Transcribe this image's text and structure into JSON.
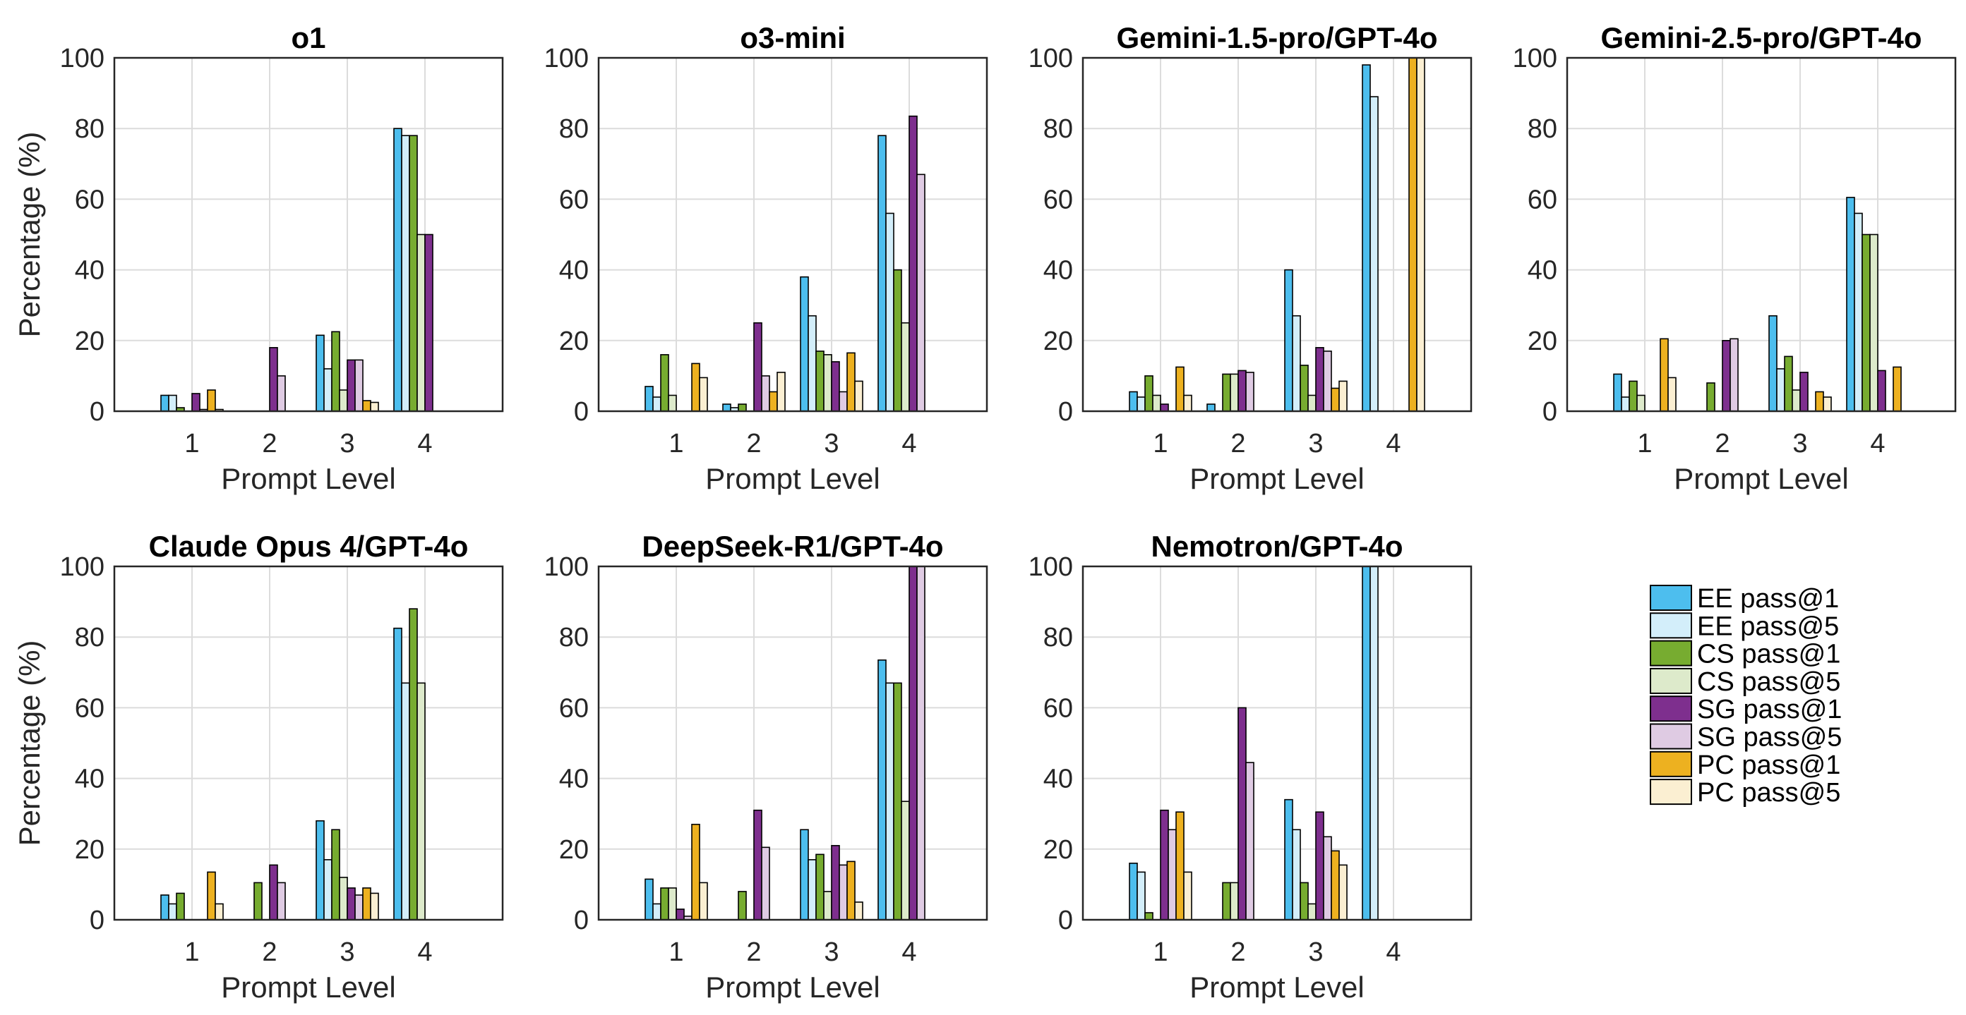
{
  "chart_data": {
    "type": "bar",
    "xlabel": "Prompt Level",
    "ylabel": "Percentage (%)",
    "categories": [
      "1",
      "2",
      "3",
      "4"
    ],
    "ylim": [
      0,
      100
    ],
    "yticks": [
      "0",
      "20",
      "40",
      "60",
      "80",
      "100"
    ],
    "grid": true,
    "legend_position": "bottom-right",
    "series": [
      {
        "name": "EE pass@1",
        "color": "#4DBEEE"
      },
      {
        "name": "EE pass@5",
        "color": "#D3EEFA"
      },
      {
        "name": "CS pass@1",
        "color": "#77AC30"
      },
      {
        "name": "CS pass@5",
        "color": "#DDEACB"
      },
      {
        "name": "SG pass@1",
        "color": "#7E2F8E"
      },
      {
        "name": "SG pass@5",
        "color": "#DFCBE3"
      },
      {
        "name": "PC pass@1",
        "color": "#EDB120"
      },
      {
        "name": "PC pass@5",
        "color": "#FBEFD2"
      }
    ],
    "panels": [
      {
        "title": "o1",
        "values": [
          [
            4.5,
            4.5,
            1,
            0,
            5,
            0.5,
            6,
            0.5
          ],
          [
            0,
            0,
            0,
            0,
            18,
            10,
            0,
            0
          ],
          [
            21.5,
            12,
            22.5,
            6,
            14.5,
            14.5,
            3,
            2.5
          ],
          [
            80,
            78,
            78,
            50,
            50,
            0,
            0,
            0
          ]
        ]
      },
      {
        "title": "o3-mini",
        "values": [
          [
            7,
            4,
            16,
            4.5,
            0,
            0,
            13.5,
            9.5
          ],
          [
            2,
            1,
            2,
            0,
            25,
            10,
            5.5,
            11
          ],
          [
            38,
            27,
            17,
            16,
            14,
            5.5,
            16.5,
            8.5
          ],
          [
            78,
            56,
            40,
            25,
            83.5,
            67,
            0,
            0
          ]
        ]
      },
      {
        "title": "Gemini-1.5-pro/GPT-4o",
        "values": [
          [
            5.5,
            4,
            10,
            4.5,
            2,
            0,
            12.5,
            4.5
          ],
          [
            2,
            0,
            10.5,
            10.5,
            11.5,
            11,
            0,
            0
          ],
          [
            40,
            27,
            13,
            4.5,
            18,
            17,
            6.5,
            8.5
          ],
          [
            98,
            89,
            0,
            0,
            0,
            0,
            100,
            100
          ]
        ]
      },
      {
        "title": "Gemini-2.5-pro/GPT-4o",
        "values": [
          [
            10.5,
            4,
            8.5,
            4.5,
            0,
            0,
            20.5,
            9.5
          ],
          [
            0,
            0,
            8,
            0,
            20,
            20.5,
            0,
            0
          ],
          [
            27,
            12,
            15.5,
            6,
            11,
            0,
            5.5,
            4
          ],
          [
            60.5,
            56,
            50,
            50,
            11.5,
            0,
            12.5,
            0
          ]
        ]
      },
      {
        "title": "Claude Opus 4/GPT-4o",
        "values": [
          [
            7,
            4.5,
            7.5,
            0,
            0,
            0,
            13.5,
            4.5
          ],
          [
            0,
            0,
            10.5,
            0,
            15.5,
            10.5,
            0,
            0
          ],
          [
            28,
            17,
            25.5,
            12,
            9,
            7,
            9,
            7.5
          ],
          [
            82.5,
            67,
            88,
            67,
            0,
            0,
            0,
            0
          ]
        ]
      },
      {
        "title": "DeepSeek-R1/GPT-4o",
        "values": [
          [
            11.5,
            4.5,
            9,
            9,
            3,
            1,
            27,
            10.5
          ],
          [
            0,
            0,
            8,
            0,
            31,
            20.5,
            0,
            0
          ],
          [
            25.5,
            17,
            18.5,
            8,
            21,
            15.5,
            16.5,
            5
          ],
          [
            73.5,
            67,
            67,
            33.5,
            100,
            100,
            0,
            0
          ]
        ]
      },
      {
        "title": "Nemotron/GPT-4o",
        "values": [
          [
            16,
            13.5,
            2,
            0,
            31,
            25.5,
            30.5,
            13.5
          ],
          [
            0,
            0,
            10.5,
            10.5,
            60,
            44.5,
            0,
            0
          ],
          [
            34,
            25.5,
            10.5,
            4.5,
            30.5,
            23.5,
            19.5,
            15.5
          ],
          [
            100,
            100,
            0,
            0,
            0,
            0,
            0,
            0
          ]
        ]
      }
    ]
  }
}
